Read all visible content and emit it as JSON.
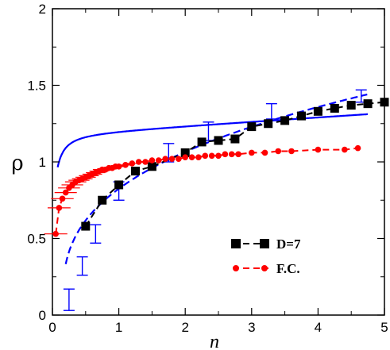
{
  "chart_data": {
    "type": "scatter",
    "xlabel": "n",
    "ylabel": "ρ",
    "xlim": [
      0,
      5
    ],
    "ylim": [
      0,
      2
    ],
    "xticks": [
      "0",
      "1",
      "2",
      "3",
      "4",
      "5"
    ],
    "yticks": [
      "0",
      "0.5",
      "1",
      "1.5",
      "2"
    ],
    "grid": false,
    "legend_position": "bottom-right",
    "series": [
      {
        "name": "D=7",
        "color": "#000000",
        "marker": "square",
        "line": "dashed",
        "x": [
          0.5,
          0.75,
          1.0,
          1.25,
          1.5,
          2.0,
          2.25,
          2.5,
          2.75,
          3.0,
          3.25,
          3.5,
          3.75,
          4.0,
          4.25,
          4.5,
          4.75,
          5.0
        ],
        "y": [
          0.58,
          0.75,
          0.85,
          0.94,
          0.97,
          1.06,
          1.13,
          1.14,
          1.15,
          1.23,
          1.25,
          1.27,
          1.3,
          1.33,
          1.35,
          1.37,
          1.38,
          1.39
        ]
      },
      {
        "name": "F.C.",
        "color": "#ff0000",
        "marker": "circle",
        "line": "dashed",
        "x": [
          0.05,
          0.1,
          0.15,
          0.2,
          0.25,
          0.3,
          0.35,
          0.4,
          0.45,
          0.5,
          0.55,
          0.6,
          0.65,
          0.7,
          0.75,
          0.8,
          0.85,
          0.9,
          0.95,
          1.0,
          1.1,
          1.2,
          1.3,
          1.4,
          1.5,
          1.6,
          1.7,
          1.8,
          1.9,
          2.0,
          2.1,
          2.2,
          2.3,
          2.4,
          2.5,
          2.6,
          2.7,
          2.8,
          3.0,
          3.2,
          3.4,
          3.6,
          4.0,
          4.4,
          4.6
        ],
        "y": [
          0.53,
          0.7,
          0.76,
          0.8,
          0.83,
          0.85,
          0.87,
          0.88,
          0.89,
          0.9,
          0.91,
          0.92,
          0.93,
          0.94,
          0.95,
          0.95,
          0.96,
          0.96,
          0.97,
          0.97,
          0.98,
          0.99,
          1.0,
          1.0,
          1.01,
          1.01,
          1.02,
          1.02,
          1.02,
          1.03,
          1.03,
          1.03,
          1.04,
          1.04,
          1.04,
          1.05,
          1.05,
          1.05,
          1.06,
          1.06,
          1.07,
          1.07,
          1.08,
          1.08,
          1.09
        ]
      }
    ],
    "errorbar_series": [
      {
        "color": "#0000ff",
        "x": [
          0.25,
          0.45,
          0.65,
          1.0,
          1.75,
          2.35,
          3.3,
          4.65
        ],
        "y": [
          0.1,
          0.32,
          0.53,
          0.81,
          1.06,
          1.2,
          1.33,
          1.43
        ],
        "err": [
          0.07,
          0.06,
          0.06,
          0.06,
          0.06,
          0.06,
          0.05,
          0.04
        ]
      }
    ],
    "fit_curves": [
      {
        "color": "#0000ff",
        "line": "solid",
        "function": "log_fit",
        "params": {
          "a": 1.18,
          "n0": 0.078,
          "c": 0.58
        }
      },
      {
        "color": "#0000ff",
        "line": "dashed",
        "function": "power_fit",
        "params": {
          "a": 0.84,
          "p": 0.34,
          "n0": 0.15,
          "shift": 0.03
        }
      }
    ]
  }
}
